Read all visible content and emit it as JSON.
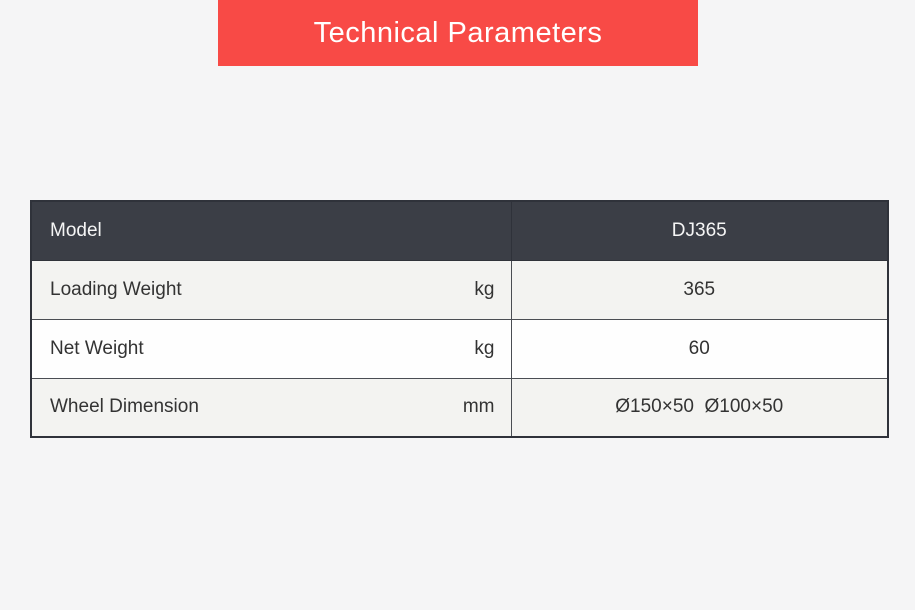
{
  "banner": {
    "title": "Technical Parameters"
  },
  "table": {
    "header": {
      "param_label": "Model",
      "value_label": "DJ365"
    },
    "rows": [
      {
        "label": "Loading Weight",
        "unit": "kg",
        "value": "365"
      },
      {
        "label": "Net Weight",
        "unit": "kg",
        "value": "60"
      },
      {
        "label": "Wheel Dimension",
        "unit": "mm",
        "value": "Ø150×50  Ø100×50"
      }
    ]
  },
  "colors": {
    "page_bg": "#f5f5f6",
    "banner_bg": "#f84a46",
    "banner_text": "#ffffff",
    "header_bg": "#3b3e46",
    "header_text": "#f5f5f5",
    "row_odd_bg": "#f3f3f1",
    "row_even_bg": "#fefefe",
    "row_text": "#333333",
    "border_dark": "#2f323a"
  }
}
